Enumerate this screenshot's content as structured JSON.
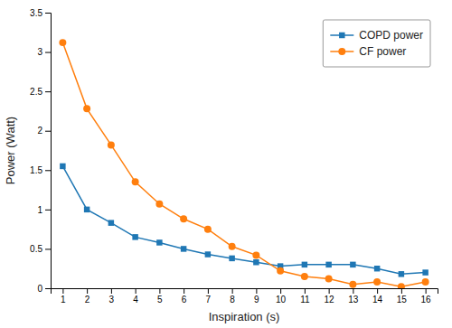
{
  "chart_data": {
    "type": "line",
    "xlabel": "Inspiration (s)",
    "ylabel": "Power (Watt)",
    "x": [
      1,
      2,
      3,
      4,
      5,
      6,
      7,
      8,
      9,
      10,
      11,
      12,
      13,
      14,
      15,
      16
    ],
    "series": [
      {
        "name": "COPD power",
        "marker": "square",
        "values": [
          1.55,
          1.0,
          0.83,
          0.65,
          0.58,
          0.5,
          0.43,
          0.38,
          0.33,
          0.28,
          0.3,
          0.3,
          0.3,
          0.25,
          0.18,
          0.2
        ]
      },
      {
        "name": "CF power",
        "marker": "circle",
        "values": [
          3.12,
          2.28,
          1.82,
          1.35,
          1.07,
          0.88,
          0.75,
          0.53,
          0.42,
          0.22,
          0.15,
          0.12,
          0.05,
          0.08,
          0.02,
          0.08
        ]
      }
    ],
    "xlim": [
      0.5,
      16.5
    ],
    "xticks": [
      1,
      2,
      3,
      4,
      5,
      6,
      7,
      8,
      9,
      10,
      11,
      12,
      13,
      14,
      15,
      16
    ],
    "ylim": [
      0,
      3.5
    ],
    "yticks": [
      0,
      0.5,
      1,
      1.5,
      2,
      2.5,
      3,
      3.5
    ],
    "grid": false,
    "legend": "upper right"
  }
}
